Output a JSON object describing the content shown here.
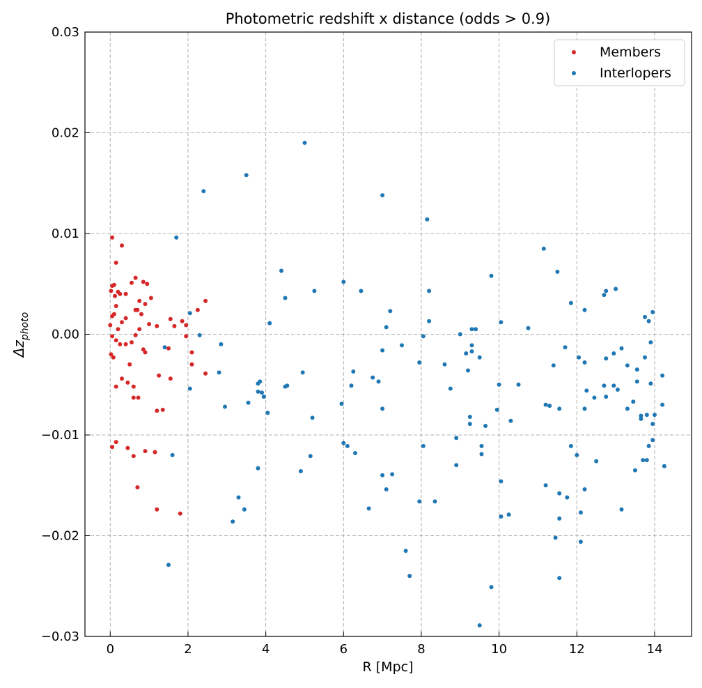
{
  "chart_data": {
    "type": "scatter",
    "title": "Photometric redshift x distance (odds > 0.9)",
    "xlabel": "R [Mpc]",
    "ylabel_main": "Δz",
    "ylabel_sub": "photo",
    "xlim": [
      -0.65,
      14.95
    ],
    "ylim": [
      -0.03,
      0.03
    ],
    "x_ticks": [
      "0",
      "2",
      "4",
      "6",
      "8",
      "10",
      "12",
      "14"
    ],
    "y_ticks": [
      "0.03",
      "0.02",
      "0.01",
      "0.00",
      "−0.01",
      "−0.02",
      "−0.03"
    ],
    "grid": true,
    "legend_position": "top-right",
    "series": [
      {
        "name": "Members",
        "color": "#d62728",
        "points": [
          [
            0.05,
            0.0096
          ],
          [
            0.3,
            0.0088
          ],
          [
            0.15,
            0.0071
          ],
          [
            0.65,
            0.0056
          ],
          [
            0.85,
            0.0052
          ],
          [
            0.95,
            0.005
          ],
          [
            0.1,
            0.0049
          ],
          [
            0.55,
            0.0051
          ],
          [
            0.05,
            0.0048
          ],
          [
            0.2,
            0.0042
          ],
          [
            0.25,
            0.004
          ],
          [
            0.4,
            0.004
          ],
          [
            0.02,
            0.0043
          ],
          [
            0.12,
            0.0038
          ],
          [
            1.05,
            0.0036
          ],
          [
            0.75,
            0.0033
          ],
          [
            2.45,
            0.0033
          ],
          [
            0.9,
            0.003
          ],
          [
            0.15,
            0.0028
          ],
          [
            0.65,
            0.0024
          ],
          [
            2.25,
            0.0024
          ],
          [
            0.7,
            0.0024
          ],
          [
            0.4,
            0.0016
          ],
          [
            0.05,
            0.0018
          ],
          [
            0.1,
            0.002
          ],
          [
            0.8,
            0.002
          ],
          [
            1.55,
            0.0015
          ],
          [
            1.85,
            0.0013
          ],
          [
            0.3,
            0.0012
          ],
          [
            0.0,
            0.0009
          ],
          [
            1.2,
            0.0008
          ],
          [
            1.65,
            0.0008
          ],
          [
            1.95,
            0.0009
          ],
          [
            0.2,
            0.0005
          ],
          [
            0.75,
            0.0005
          ],
          [
            1.0,
            0.001
          ],
          [
            0.65,
            -0.0001
          ],
          [
            0.05,
            -0.0002
          ],
          [
            0.15,
            -0.0006
          ],
          [
            0.55,
            -0.0008
          ],
          [
            0.25,
            -0.001
          ],
          [
            0.4,
            -0.001
          ],
          [
            0.85,
            -0.0015
          ],
          [
            0.9,
            -0.0018
          ],
          [
            1.5,
            -0.0014
          ],
          [
            2.1,
            -0.0018
          ],
          [
            0.02,
            -0.002
          ],
          [
            0.08,
            -0.0023
          ],
          [
            1.95,
            -0.0002
          ],
          [
            0.3,
            -0.0044
          ],
          [
            1.25,
            -0.0041
          ],
          [
            1.55,
            -0.0044
          ],
          [
            2.45,
            -0.0039
          ],
          [
            2.1,
            -0.003
          ],
          [
            0.5,
            -0.003
          ],
          [
            0.45,
            -0.0048
          ],
          [
            0.6,
            -0.0052
          ],
          [
            0.15,
            -0.0052
          ],
          [
            0.6,
            -0.0063
          ],
          [
            0.72,
            -0.0063
          ],
          [
            1.2,
            -0.0076
          ],
          [
            1.35,
            -0.0075
          ],
          [
            0.05,
            -0.0112
          ],
          [
            0.15,
            -0.0107
          ],
          [
            0.45,
            -0.0113
          ],
          [
            0.9,
            -0.0116
          ],
          [
            1.15,
            -0.0117
          ],
          [
            0.6,
            -0.0121
          ],
          [
            0.7,
            -0.0152
          ],
          [
            1.2,
            -0.0174
          ],
          [
            1.8,
            -0.0178
          ]
        ]
      },
      {
        "name": "Interlopers",
        "color": "#1f77b4",
        "points": [
          [
            5.0,
            0.019
          ],
          [
            3.5,
            0.0158
          ],
          [
            2.4,
            0.0142
          ],
          [
            7.0,
            0.0138
          ],
          [
            8.15,
            0.0114
          ],
          [
            1.7,
            0.0096
          ],
          [
            11.15,
            0.0085
          ],
          [
            11.5,
            0.0062
          ],
          [
            4.4,
            0.0063
          ],
          [
            9.8,
            0.0058
          ],
          [
            6.0,
            0.0052
          ],
          [
            5.25,
            0.0043
          ],
          [
            6.45,
            0.0043
          ],
          [
            8.2,
            0.0043
          ],
          [
            12.75,
            0.0043
          ],
          [
            13.0,
            0.0045
          ],
          [
            12.7,
            0.0039
          ],
          [
            4.5,
            0.0036
          ],
          [
            11.85,
            0.0031
          ],
          [
            7.2,
            0.0023
          ],
          [
            12.2,
            0.0024
          ],
          [
            13.95,
            0.0022
          ],
          [
            2.05,
            0.0021
          ],
          [
            8.2,
            0.0013
          ],
          [
            10.05,
            0.0012
          ],
          [
            13.75,
            0.0017
          ],
          [
            13.85,
            0.0013
          ],
          [
            4.1,
            0.0011
          ],
          [
            7.1,
            0.0007
          ],
          [
            9.3,
            0.0005
          ],
          [
            9.4,
            0.0005
          ],
          [
            10.75,
            0.0006
          ],
          [
            9.0,
            0.0
          ],
          [
            2.3,
            -0.0001
          ],
          [
            8.05,
            -0.0002
          ],
          [
            1.4,
            -0.0013
          ],
          [
            2.85,
            -0.001
          ],
          [
            7.0,
            -0.0016
          ],
          [
            7.5,
            -0.0011
          ],
          [
            9.3,
            -0.0011
          ],
          [
            9.15,
            -0.0019
          ],
          [
            9.3,
            -0.0017
          ],
          [
            9.5,
            -0.0023
          ],
          [
            11.7,
            -0.0013
          ],
          [
            12.05,
            -0.0023
          ],
          [
            12.2,
            -0.0028
          ],
          [
            12.75,
            -0.0024
          ],
          [
            12.95,
            -0.0019
          ],
          [
            13.15,
            -0.0014
          ],
          [
            13.55,
            -0.0035
          ],
          [
            13.75,
            -0.0023
          ],
          [
            13.9,
            -0.0008
          ],
          [
            13.3,
            -0.0031
          ],
          [
            11.4,
            -0.0031
          ],
          [
            7.95,
            -0.0028
          ],
          [
            8.6,
            -0.003
          ],
          [
            9.2,
            -0.0036
          ],
          [
            6.25,
            -0.0037
          ],
          [
            2.8,
            -0.0038
          ],
          [
            4.95,
            -0.0038
          ],
          [
            10.0,
            -0.005
          ],
          [
            10.5,
            -0.005
          ],
          [
            12.7,
            -0.0051
          ],
          [
            12.95,
            -0.0051
          ],
          [
            13.05,
            -0.0055
          ],
          [
            13.55,
            -0.0047
          ],
          [
            13.9,
            -0.0049
          ],
          [
            14.2,
            -0.0041
          ],
          [
            2.05,
            -0.0054
          ],
          [
            3.8,
            -0.0049
          ],
          [
            3.85,
            -0.0047
          ],
          [
            4.5,
            -0.0052
          ],
          [
            4.55,
            -0.0051
          ],
          [
            6.75,
            -0.0043
          ],
          [
            6.9,
            -0.0047
          ],
          [
            8.75,
            -0.0054
          ],
          [
            6.2,
            -0.0051
          ],
          [
            3.8,
            -0.0057
          ],
          [
            3.9,
            -0.0058
          ],
          [
            3.95,
            -0.0062
          ],
          [
            3.55,
            -0.0068
          ],
          [
            2.95,
            -0.0072
          ],
          [
            5.95,
            -0.0069
          ],
          [
            7.0,
            -0.0074
          ],
          [
            11.2,
            -0.007
          ],
          [
            11.3,
            -0.0071
          ],
          [
            11.55,
            -0.0074
          ],
          [
            12.2,
            -0.0074
          ],
          [
            12.25,
            -0.0056
          ],
          [
            12.45,
            -0.0063
          ],
          [
            12.75,
            -0.0062
          ],
          [
            13.3,
            -0.0074
          ],
          [
            13.45,
            -0.0067
          ],
          [
            13.65,
            -0.0084
          ],
          [
            13.65,
            -0.0081
          ],
          [
            13.8,
            -0.008
          ],
          [
            14.0,
            -0.008
          ],
          [
            14.2,
            -0.007
          ],
          [
            9.25,
            -0.0082
          ],
          [
            9.25,
            -0.0089
          ],
          [
            9.65,
            -0.0091
          ],
          [
            9.95,
            -0.0075
          ],
          [
            10.3,
            -0.0086
          ],
          [
            4.05,
            -0.0078
          ],
          [
            5.2,
            -0.0083
          ],
          [
            13.95,
            -0.0089
          ],
          [
            13.95,
            -0.0105
          ],
          [
            13.85,
            -0.0111
          ],
          [
            6.0,
            -0.0108
          ],
          [
            6.1,
            -0.0111
          ],
          [
            8.05,
            -0.0111
          ],
          [
            8.9,
            -0.0103
          ],
          [
            9.55,
            -0.0111
          ],
          [
            9.55,
            -0.0119
          ],
          [
            11.85,
            -0.0111
          ],
          [
            12.0,
            -0.012
          ],
          [
            6.3,
            -0.0118
          ],
          [
            1.6,
            -0.012
          ],
          [
            5.15,
            -0.0121
          ],
          [
            13.7,
            -0.0125
          ],
          [
            13.8,
            -0.0125
          ],
          [
            12.5,
            -0.0126
          ],
          [
            14.25,
            -0.0131
          ],
          [
            3.8,
            -0.0133
          ],
          [
            8.9,
            -0.013
          ],
          [
            4.9,
            -0.0136
          ],
          [
            7.0,
            -0.014
          ],
          [
            7.25,
            -0.0139
          ],
          [
            10.05,
            -0.0146
          ],
          [
            13.5,
            -0.0135
          ],
          [
            11.2,
            -0.015
          ],
          [
            7.1,
            -0.0154
          ],
          [
            12.2,
            -0.0154
          ],
          [
            11.55,
            -0.0158
          ],
          [
            11.75,
            -0.0162
          ],
          [
            3.3,
            -0.0162
          ],
          [
            7.95,
            -0.0166
          ],
          [
            8.35,
            -0.0166
          ],
          [
            3.45,
            -0.0174
          ],
          [
            6.65,
            -0.0173
          ],
          [
            13.15,
            -0.0174
          ],
          [
            12.1,
            -0.0177
          ],
          [
            10.05,
            -0.0181
          ],
          [
            10.25,
            -0.0179
          ],
          [
            11.55,
            -0.0183
          ],
          [
            3.15,
            -0.0186
          ],
          [
            11.45,
            -0.0202
          ],
          [
            12.1,
            -0.0206
          ],
          [
            7.6,
            -0.0215
          ],
          [
            1.5,
            -0.0229
          ],
          [
            7.7,
            -0.024
          ],
          [
            11.55,
            -0.0242
          ],
          [
            9.8,
            -0.0251
          ],
          [
            9.5,
            -0.0289
          ]
        ]
      }
    ]
  }
}
